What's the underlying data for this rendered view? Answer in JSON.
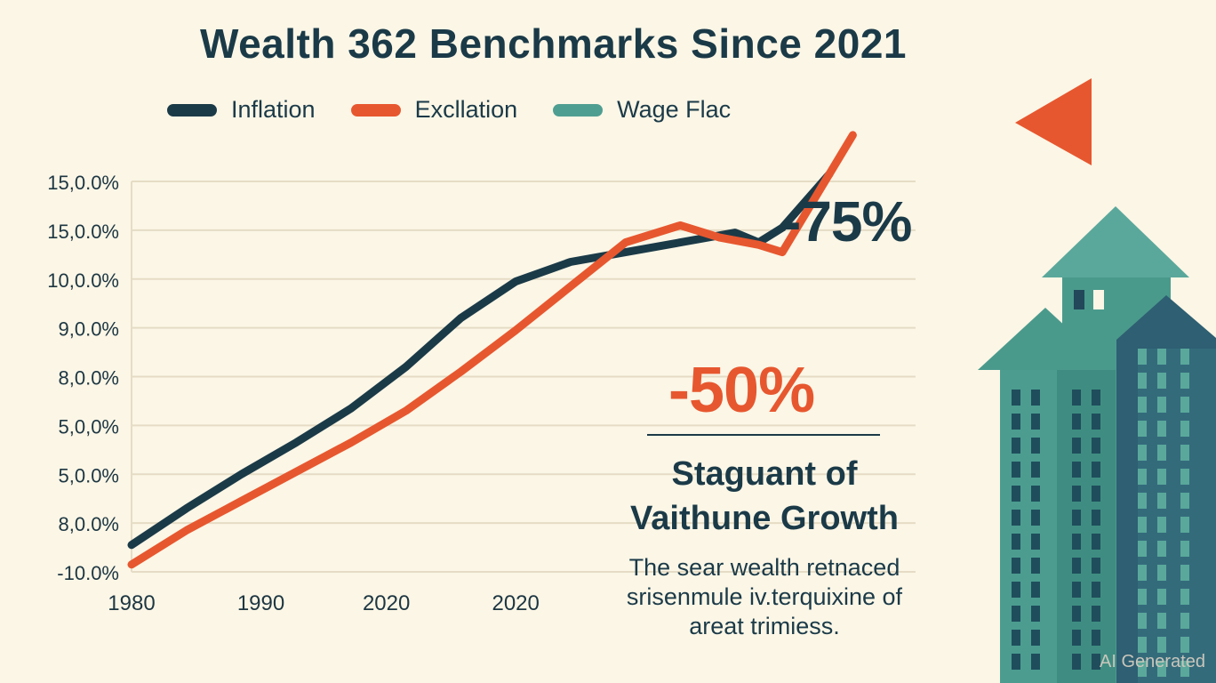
{
  "chart_data": {
    "type": "line",
    "title": "Wealth 362 Benchmarks Since 2021",
    "legend": {
      "placement": "top-left",
      "entries": [
        "Inflation",
        "Excllation",
        "Wage Flac"
      ]
    },
    "y_tick_labels": [
      "15,0.0%",
      "15,0.0%",
      "10,0.0%",
      "9,0.0%",
      "8,0.0%",
      "5,0,0%",
      "5,0.0%",
      "8,0.0%",
      "-10.0%"
    ],
    "x_tick_labels": [
      "1980",
      "1990",
      "2020",
      "2020"
    ],
    "grid": true,
    "x_range": [
      0,
      1
    ],
    "y_range": [
      0,
      8
    ],
    "series": [
      {
        "name": "Inflation",
        "color": "#1b3a48",
        "x": [
          0.0,
          0.07,
          0.14,
          0.21,
          0.28,
          0.35,
          0.42,
          0.49,
          0.56,
          0.63,
          0.7,
          0.77,
          0.8,
          0.83,
          0.89
        ],
        "y": [
          0.55,
          1.3,
          2.0,
          2.65,
          3.35,
          4.2,
          5.2,
          5.95,
          6.35,
          6.55,
          6.75,
          6.95,
          6.75,
          7.05,
          8.15
        ]
      },
      {
        "name": "Excllation",
        "color": "#e7572f",
        "x": [
          0.0,
          0.07,
          0.14,
          0.21,
          0.28,
          0.35,
          0.42,
          0.49,
          0.56,
          0.63,
          0.7,
          0.75,
          0.8,
          0.83,
          0.92
        ],
        "y": [
          0.15,
          0.85,
          1.45,
          2.05,
          2.65,
          3.3,
          4.1,
          4.95,
          5.85,
          6.75,
          7.1,
          6.85,
          6.7,
          6.55,
          8.95
        ]
      }
    ],
    "annotations": [
      {
        "label": "-75%"
      },
      {
        "label": "-50%"
      }
    ]
  },
  "text": {
    "heading_lines": [
      "Staguant of",
      "Vaithune Growth"
    ],
    "body_lines": [
      "The sear wealth retnaced",
      "srisenmule iv.terquixine of",
      "areat trimiess."
    ],
    "watermark": "AI Generated"
  },
  "colors": {
    "background": "#fbf6e6",
    "navy": "#1b3a48",
    "orange": "#e7572f",
    "teal": "#4f9e92"
  },
  "icons": [
    "city-buildings-illustration",
    "trend-arrow-icon"
  ]
}
